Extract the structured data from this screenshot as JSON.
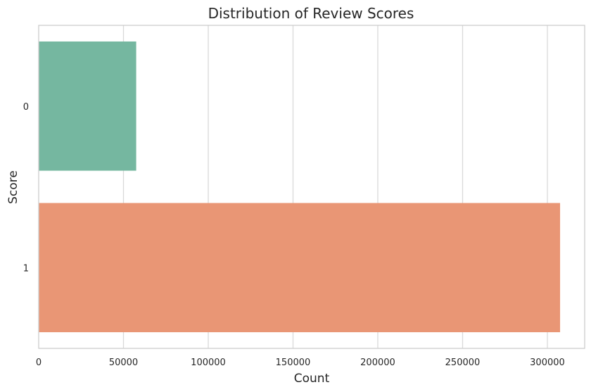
{
  "chart_data": {
    "type": "bar",
    "orientation": "horizontal",
    "title": "Distribution of Review Scores",
    "xlabel": "Count",
    "ylabel": "Score",
    "categories": [
      "0",
      "1"
    ],
    "values": [
      57500,
      307500
    ],
    "colors": [
      "#75b7a0",
      "#e99675"
    ],
    "xlim": [
      0,
      322000
    ],
    "xticks": [
      0,
      50000,
      100000,
      150000,
      200000,
      250000,
      300000
    ],
    "xtick_labels": [
      "0",
      "50000",
      "100000",
      "150000",
      "200000",
      "250000",
      "300000"
    ],
    "grid": "vertical",
    "grid_color": "#d9d9d9",
    "frame_color": "#cccccc",
    "legend": "none"
  }
}
